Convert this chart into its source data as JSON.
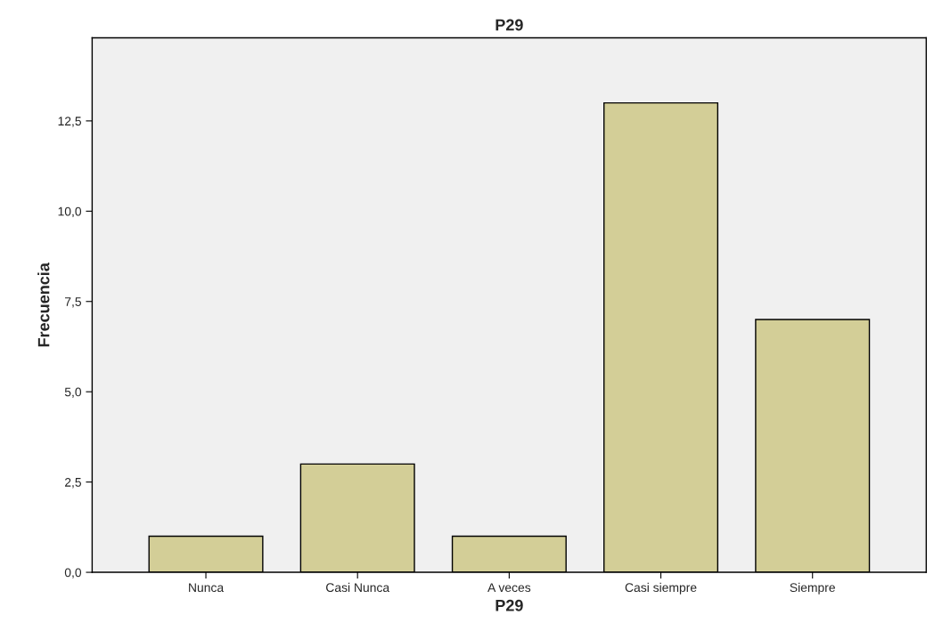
{
  "chart_data": {
    "type": "bar",
    "title": "P29",
    "xlabel": "P29",
    "ylabel": "Frecuencia",
    "categories": [
      "Nunca",
      "Casi Nunca",
      "A veces",
      "Casi siempre",
      "Siempre"
    ],
    "values": [
      1,
      3,
      1,
      13,
      7
    ],
    "color": "#d3ce97",
    "ylim": [
      0,
      14.8
    ],
    "yticks": [
      {
        "value": 0,
        "label": "0,0"
      },
      {
        "value": 2.5,
        "label": "2,5"
      },
      {
        "value": 5,
        "label": "5,0"
      },
      {
        "value": 7.5,
        "label": "7,5"
      },
      {
        "value": 10,
        "label": "10,0"
      },
      {
        "value": 12.5,
        "label": "12,5"
      }
    ],
    "grid": false
  }
}
